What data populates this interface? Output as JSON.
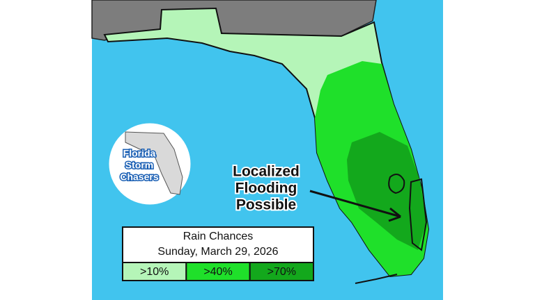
{
  "title": "Rain Chances",
  "date": "Sunday, March 29, 2026",
  "legend": [
    {
      "label": ">10%",
      "color": "#b5f5b8"
    },
    {
      "label": ">40%",
      "color": "#1fe02a"
    },
    {
      "label": ">70%",
      "color": "#13a81c"
    }
  ],
  "annotation": [
    "Localized",
    "Flooding",
    "Possible"
  ],
  "logo": [
    "Florida",
    "Storm",
    "Chasers"
  ]
}
